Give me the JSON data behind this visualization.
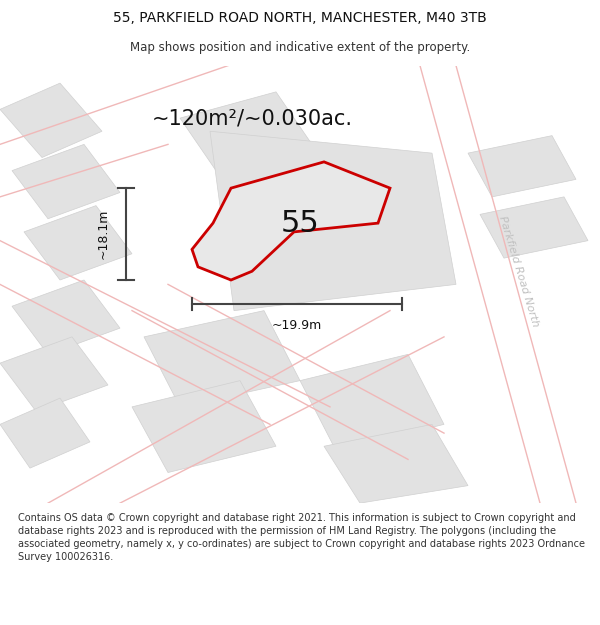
{
  "title_line1": "55, PARKFIELD ROAD NORTH, MANCHESTER, M40 3TB",
  "title_line2": "Map shows position and indicative extent of the property.",
  "area_label": "~120m²/~0.030ac.",
  "property_number": "55",
  "dim_height": "~18.1m",
  "dim_width": "~19.9m",
  "street_label": "Parkfield Road North",
  "footer_text": "Contains OS data © Crown copyright and database right 2021. This information is subject to Crown copyright and database rights 2023 and is reproduced with the permission of HM Land Registry. The polygons (including the associated geometry, namely x, y co-ordinates) are subject to Crown copyright and database rights 2023 Ordnance Survey 100026316.",
  "map_bg": "#f0f0f0",
  "property_fill": "#e8e8e8",
  "property_outline": "#cc0000",
  "road_color_light": "#f0b8b8",
  "building_color": "#e2e2e2",
  "building_edge": "#d0d0d0",
  "dim_line_color": "#444444",
  "street_label_color": "#c0c0c0",
  "figsize": [
    6.0,
    6.25
  ],
  "dpi": 100
}
